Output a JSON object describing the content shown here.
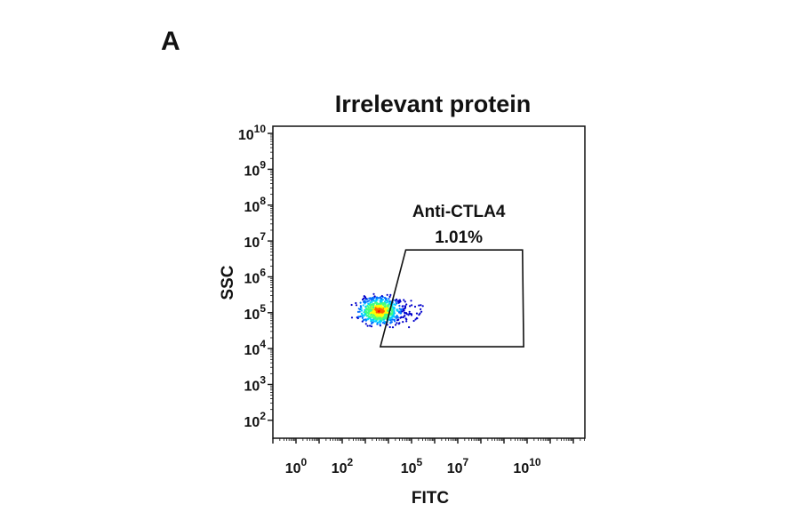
{
  "panel_label": "A",
  "chart_data": {
    "type": "scatter",
    "title": "Irrelevant protein",
    "xlabel": "FITC",
    "ylabel": "SSC",
    "x_scale": "log",
    "y_scale": "log",
    "xlim_exp": [
      -1,
      12.5
    ],
    "ylim_exp": [
      1.5,
      10.2
    ],
    "x_ticks": [
      {
        "base": "10",
        "exp": "0",
        "value_exp": 0
      },
      {
        "base": "10",
        "exp": "2",
        "value_exp": 2
      },
      {
        "base": "10",
        "exp": "5",
        "value_exp": 5
      },
      {
        "base": "10",
        "exp": "7",
        "value_exp": 7
      },
      {
        "base": "10",
        "exp": "10",
        "value_exp": 10
      }
    ],
    "y_ticks": [
      {
        "base": "10",
        "exp": "2",
        "value_exp": 2
      },
      {
        "base": "10",
        "exp": "3",
        "value_exp": 3
      },
      {
        "base": "10",
        "exp": "4",
        "value_exp": 4
      },
      {
        "base": "10",
        "exp": "5",
        "value_exp": 5
      },
      {
        "base": "10",
        "exp": "6",
        "value_exp": 6
      },
      {
        "base": "10",
        "exp": "7",
        "value_exp": 7
      },
      {
        "base": "10",
        "exp": "8",
        "value_exp": 8
      },
      {
        "base": "10",
        "exp": "9",
        "value_exp": 9
      },
      {
        "base": "10",
        "exp": "10",
        "value_exp": 10
      }
    ],
    "population": {
      "center_exp": [
        3.6,
        5.05
      ],
      "spread_exp": [
        0.45,
        0.18
      ],
      "tail_to_x_exp": 5.5
    },
    "gate": {
      "name": "Anti-CTLA4",
      "percent": "1.01%",
      "vertices_exp": [
        [
          4.75,
          6.75
        ],
        [
          9.8,
          6.75
        ],
        [
          9.85,
          4.05
        ],
        [
          3.65,
          4.05
        ]
      ]
    },
    "density_colors": [
      "#0000cc",
      "#0070ff",
      "#00d0ff",
      "#40ff80",
      "#ffff00",
      "#ff6000",
      "#ff0000"
    ],
    "grid": false,
    "legend": "none"
  }
}
